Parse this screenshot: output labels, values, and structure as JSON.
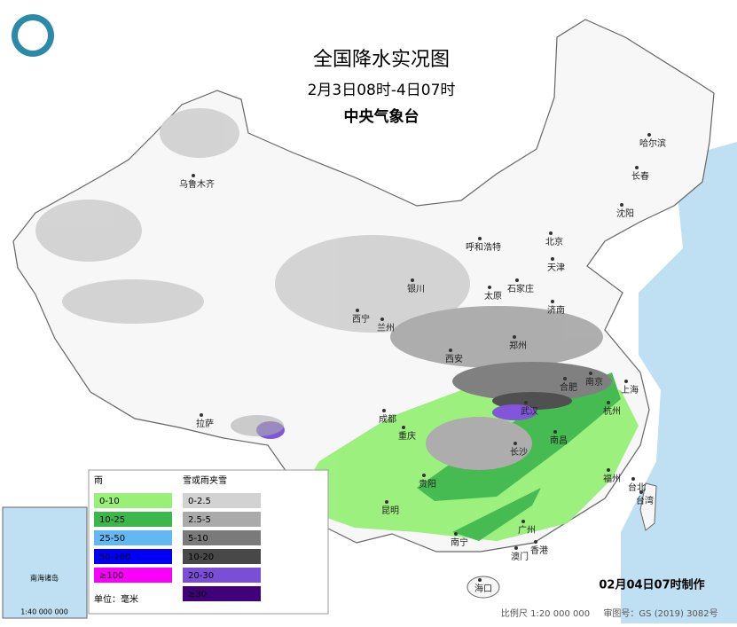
{
  "header": {
    "title": "全国降水实况图",
    "period": "2月3日08时-4日07时",
    "agency": "中央气象台"
  },
  "cities": [
    "乌鲁木齐",
    "哈尔滨",
    "长春",
    "沈阳",
    "呼和浩特",
    "北京",
    "天津",
    "银川",
    "石家庄",
    "太原",
    "济南",
    "西宁",
    "兰州",
    "郑州",
    "西安",
    "合肥",
    "南京",
    "上海",
    "拉萨",
    "成都",
    "武汉",
    "杭州",
    "重庆",
    "长沙",
    "南昌",
    "贵阳",
    "福州",
    "台北",
    "台湾",
    "昆明",
    "南宁",
    "广州",
    "香港",
    "澳门",
    "海口"
  ],
  "legend": {
    "rain": {
      "title": "雨",
      "items": [
        {
          "label": "0-10",
          "color": "#98f078"
        },
        {
          "label": "10-25",
          "color": "#3cb84a"
        },
        {
          "label": "25-50",
          "color": "#62b8f2"
        },
        {
          "label": "50-100",
          "color": "#0000fa"
        },
        {
          "label": "≥100",
          "color": "#fa00fa"
        }
      ]
    },
    "snow": {
      "title": "雪或雨夹雪",
      "items": [
        {
          "label": "0-2.5",
          "color": "#d2d2d2"
        },
        {
          "label": "2.5-5",
          "color": "#aaaaaa"
        },
        {
          "label": "5-10",
          "color": "#7a7a7a"
        },
        {
          "label": "10-20",
          "color": "#484848"
        },
        {
          "label": "20-30",
          "color": "#7c4ed8"
        },
        {
          "label": "≥30",
          "color": "#40007a"
        }
      ]
    },
    "unit": "单位：毫米"
  },
  "inset": {
    "title": "南海诸岛",
    "scale": "1:40 000 000"
  },
  "footer": {
    "made": "02月04日07时制作",
    "scale": "比例尺 1:20 000 000",
    "approval": "审图号：GS (2019) 3082号"
  }
}
